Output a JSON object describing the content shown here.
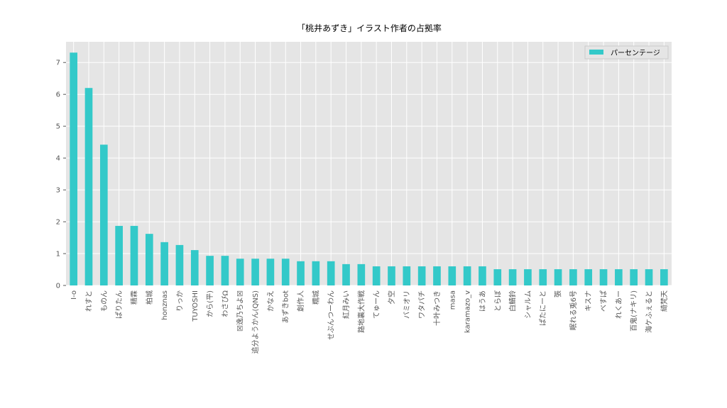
{
  "chart_data": {
    "type": "bar",
    "title": "「桃井あずき」イラスト作者の占拠率",
    "categories": [
      "I-o",
      "れすと",
      "ものん",
      "ぱりたん",
      "精霖",
      "柏城",
      "honznas",
      "りっか",
      "TUYOSHI",
      "から(平)",
      "わさびΩ",
      "☒逸乃ちよ☒",
      "追分ようかん(QNS)",
      "かなえ",
      "あずきbot",
      "創作人",
      "糯城",
      "せぶんつーわん",
      "紅月みい",
      "路地裏大作戦",
      "てゅーん",
      "夕空",
      "バミオリ",
      "ワタパチ",
      "十叶みつき",
      "masa",
      "karamazo_v",
      "はうあ",
      "とらぼ",
      "白鯖鈴",
      "シャルム",
      "ぱたにーと",
      "張",
      "眠れる兎6号",
      "キスナ",
      "べすぱ",
      "れくあー",
      "百鬼(ナキリ)",
      "海ケふぇると",
      "綺梵天"
    ],
    "series": [
      {
        "name": "パーセンテージ",
        "color": "#33c9c9",
        "values": [
          7.31,
          6.2,
          4.42,
          1.87,
          1.87,
          1.62,
          1.36,
          1.27,
          1.11,
          0.93,
          0.93,
          0.84,
          0.84,
          0.84,
          0.84,
          0.76,
          0.76,
          0.76,
          0.67,
          0.67,
          0.6,
          0.6,
          0.6,
          0.6,
          0.6,
          0.6,
          0.6,
          0.6,
          0.51,
          0.51,
          0.51,
          0.51,
          0.51,
          0.51,
          0.51,
          0.51,
          0.51,
          0.51,
          0.51,
          0.51
        ]
      }
    ],
    "ylim": [
      0,
      7.65
    ],
    "yticks": [
      0,
      1,
      2,
      3,
      4,
      5,
      6,
      7
    ],
    "grid": true,
    "legend": "upper right"
  }
}
